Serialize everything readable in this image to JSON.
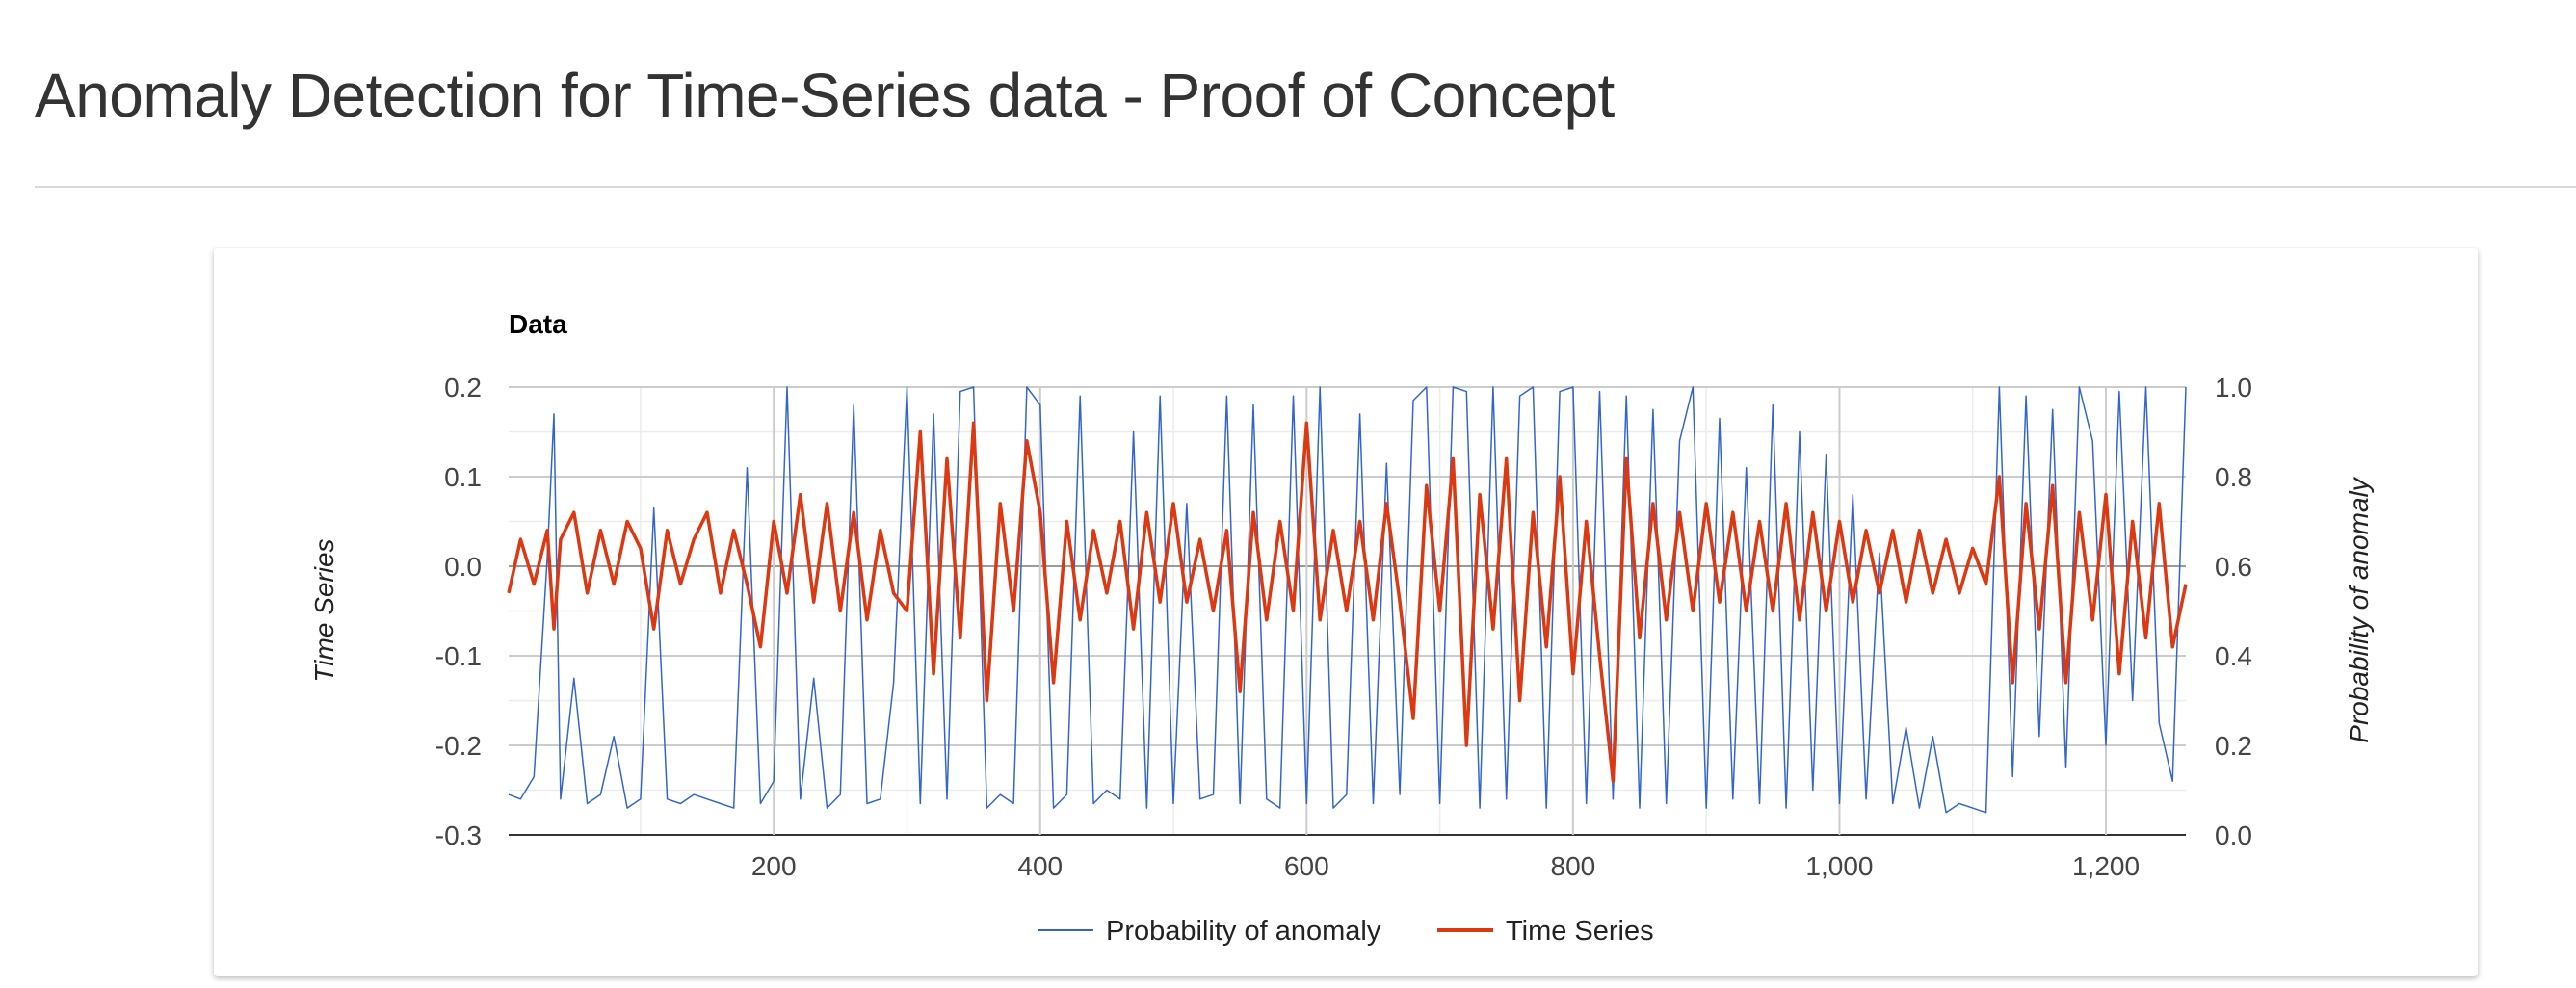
{
  "page": {
    "title": "Anomaly Detection for Time-Series data - Proof of Concept"
  },
  "chart_data": {
    "type": "line",
    "title": "Data",
    "y_left_label": "Time Series",
    "y_right_label": "Probability of anomaly",
    "x_range": [
      1,
      1260
    ],
    "x_ticks": [
      200,
      400,
      600,
      800,
      1000,
      1200
    ],
    "x_tick_labels": [
      "200",
      "400",
      "600",
      "800",
      "1,000",
      "1,200"
    ],
    "y_left_range": [
      -0.3,
      0.2
    ],
    "y_left_ticks": [
      0.2,
      0.1,
      0.0,
      -0.1,
      -0.2,
      -0.3
    ],
    "y_left_tick_labels": [
      "0.2",
      "0.1",
      "0.0",
      "-0.1",
      "-0.2",
      "-0.3"
    ],
    "y_right_range": [
      0.0,
      1.0
    ],
    "y_right_ticks": [
      1.0,
      0.8,
      0.6,
      0.4,
      0.2,
      0.0
    ],
    "y_right_tick_labels": [
      "1.0",
      "0.8",
      "0.6",
      "0.4",
      "0.2",
      "0.0"
    ],
    "grid": true,
    "legend_position": "bottom",
    "series": [
      {
        "name": "Probability of anomaly",
        "axis": "right",
        "color": "#3366cc",
        "x": [
          1,
          10,
          20,
          30,
          35,
          40,
          50,
          60,
          70,
          80,
          90,
          100,
          110,
          120,
          130,
          140,
          150,
          160,
          170,
          180,
          190,
          200,
          210,
          220,
          230,
          240,
          250,
          260,
          270,
          280,
          290,
          300,
          310,
          320,
          330,
          340,
          350,
          360,
          370,
          380,
          390,
          400,
          410,
          420,
          430,
          440,
          450,
          460,
          470,
          480,
          490,
          500,
          510,
          520,
          530,
          540,
          550,
          560,
          570,
          580,
          590,
          600,
          610,
          620,
          630,
          640,
          650,
          660,
          670,
          680,
          690,
          700,
          710,
          720,
          730,
          740,
          750,
          760,
          770,
          780,
          790,
          800,
          810,
          820,
          830,
          840,
          850,
          860,
          870,
          880,
          890,
          900,
          910,
          920,
          930,
          940,
          950,
          960,
          970,
          980,
          990,
          1000,
          1010,
          1020,
          1030,
          1040,
          1050,
          1060,
          1070,
          1080,
          1090,
          1100,
          1110,
          1120,
          1130,
          1140,
          1150,
          1160,
          1170,
          1180,
          1190,
          1200,
          1210,
          1220,
          1230,
          1240,
          1250,
          1260
        ],
        "y": [
          0.09,
          0.08,
          0.13,
          0.62,
          0.94,
          0.08,
          0.35,
          0.07,
          0.09,
          0.22,
          0.06,
          0.08,
          0.73,
          0.08,
          0.07,
          0.09,
          0.08,
          0.07,
          0.06,
          0.82,
          0.07,
          0.12,
          1.0,
          0.08,
          0.35,
          0.06,
          0.09,
          0.96,
          0.07,
          0.08,
          0.34,
          1.0,
          0.07,
          0.94,
          0.08,
          0.99,
          1.0,
          0.06,
          0.09,
          0.07,
          1.0,
          0.96,
          0.06,
          0.09,
          0.98,
          0.07,
          0.1,
          0.08,
          0.9,
          0.06,
          0.98,
          0.07,
          0.74,
          0.08,
          0.09,
          0.98,
          0.07,
          0.96,
          0.08,
          0.06,
          0.98,
          0.07,
          1.0,
          0.06,
          0.09,
          0.94,
          0.07,
          0.83,
          0.09,
          0.97,
          1.0,
          0.07,
          1.0,
          0.99,
          0.06,
          1.0,
          0.08,
          0.98,
          1.0,
          0.06,
          0.99,
          1.0,
          0.07,
          0.99,
          0.08,
          0.98,
          0.06,
          0.95,
          0.07,
          0.88,
          1.0,
          0.06,
          0.93,
          0.08,
          0.82,
          0.07,
          0.96,
          0.06,
          0.9,
          0.1,
          0.85,
          0.07,
          0.76,
          0.08,
          0.63,
          0.07,
          0.24,
          0.06,
          0.22,
          0.05,
          0.07,
          0.06,
          0.05,
          1.0,
          0.13,
          0.98,
          0.22,
          0.95,
          0.15,
          1.0,
          0.88,
          0.2,
          0.99,
          0.3,
          1.0,
          0.25,
          0.12,
          1.0
        ]
      },
      {
        "name": "Time Series",
        "axis": "left",
        "color": "#dc3912",
        "x": [
          1,
          10,
          20,
          30,
          35,
          40,
          50,
          60,
          70,
          80,
          90,
          100,
          110,
          120,
          130,
          140,
          150,
          160,
          170,
          180,
          190,
          200,
          210,
          220,
          230,
          240,
          250,
          260,
          270,
          280,
          290,
          300,
          310,
          320,
          330,
          340,
          350,
          360,
          370,
          380,
          390,
          400,
          410,
          420,
          430,
          440,
          450,
          460,
          470,
          480,
          490,
          500,
          510,
          520,
          530,
          540,
          550,
          560,
          570,
          580,
          590,
          600,
          610,
          620,
          630,
          640,
          650,
          660,
          670,
          680,
          690,
          700,
          710,
          720,
          730,
          740,
          750,
          760,
          770,
          780,
          790,
          800,
          810,
          820,
          830,
          840,
          850,
          860,
          870,
          880,
          890,
          900,
          910,
          920,
          930,
          940,
          950,
          960,
          970,
          980,
          990,
          1000,
          1010,
          1020,
          1030,
          1040,
          1050,
          1060,
          1070,
          1080,
          1090,
          1100,
          1110,
          1120,
          1130,
          1140,
          1150,
          1160,
          1170,
          1180,
          1190,
          1200,
          1210,
          1220,
          1230,
          1240,
          1250,
          1260
        ],
        "y": [
          -0.03,
          0.03,
          -0.02,
          0.04,
          -0.07,
          0.03,
          0.06,
          -0.03,
          0.04,
          -0.02,
          0.05,
          0.02,
          -0.07,
          0.04,
          -0.02,
          0.03,
          0.06,
          -0.03,
          0.04,
          -0.02,
          -0.09,
          0.05,
          -0.03,
          0.08,
          -0.04,
          0.07,
          -0.05,
          0.06,
          -0.06,
          0.04,
          -0.03,
          -0.05,
          0.15,
          -0.12,
          0.12,
          -0.08,
          0.16,
          -0.15,
          0.07,
          -0.05,
          0.14,
          0.06,
          -0.13,
          0.05,
          -0.06,
          0.04,
          -0.03,
          0.05,
          -0.07,
          0.06,
          -0.04,
          0.07,
          -0.04,
          0.03,
          -0.05,
          0.04,
          -0.14,
          0.06,
          -0.06,
          0.05,
          -0.05,
          0.16,
          -0.06,
          0.04,
          -0.05,
          0.05,
          -0.06,
          0.07,
          -0.04,
          -0.17,
          0.09,
          -0.05,
          0.12,
          -0.2,
          0.08,
          -0.07,
          0.12,
          -0.15,
          0.06,
          -0.09,
          0.1,
          -0.12,
          0.05,
          -0.1,
          -0.24,
          0.12,
          -0.08,
          0.07,
          -0.06,
          0.06,
          -0.05,
          0.07,
          -0.04,
          0.06,
          -0.05,
          0.05,
          -0.05,
          0.07,
          -0.06,
          0.06,
          -0.05,
          0.05,
          -0.04,
          0.04,
          -0.03,
          0.04,
          -0.04,
          0.04,
          -0.03,
          0.03,
          -0.03,
          0.02,
          -0.02,
          0.1,
          -0.13,
          0.07,
          -0.07,
          0.09,
          -0.13,
          0.06,
          -0.06,
          0.08,
          -0.12,
          0.05,
          -0.08,
          0.07,
          -0.09,
          -0.02
        ]
      }
    ]
  }
}
